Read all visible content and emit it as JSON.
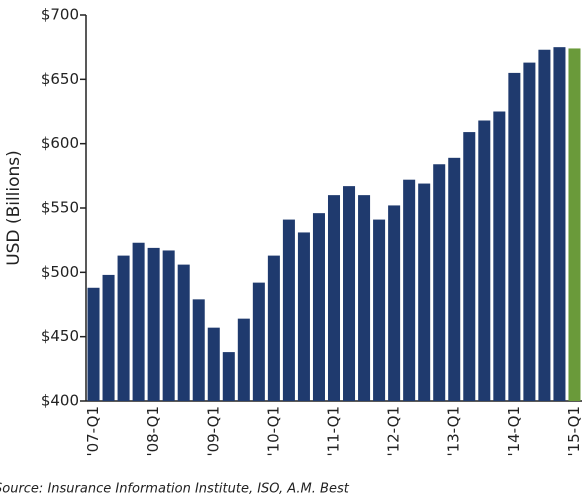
{
  "chart_data": {
    "type": "bar",
    "y_label": "USD (Billions)",
    "source": "Source: Insurance Information Institute, ISO, A.M. Best",
    "categories": [
      "'07-Q1",
      null,
      null,
      null,
      "'08-Q1",
      null,
      null,
      null,
      "'09-Q1",
      null,
      null,
      null,
      "'10-Q1",
      null,
      null,
      null,
      "'11-Q1",
      null,
      null,
      null,
      "'12-Q1",
      null,
      null,
      null,
      "'13-Q1",
      null,
      null,
      null,
      "'14-Q1",
      null,
      null,
      null,
      "'15-Q1"
    ],
    "values": [
      488,
      498,
      513,
      523,
      519,
      517,
      506,
      479,
      457,
      438,
      464,
      492,
      513,
      541,
      531,
      546,
      560,
      567,
      560,
      541,
      552,
      572,
      569,
      584,
      589,
      609,
      618,
      625,
      655,
      663,
      673,
      675,
      674
    ],
    "colors": [
      "#1f3a6e",
      "#1f3a6e",
      "#1f3a6e",
      "#1f3a6e",
      "#1f3a6e",
      "#1f3a6e",
      "#1f3a6e",
      "#1f3a6e",
      "#1f3a6e",
      "#1f3a6e",
      "#1f3a6e",
      "#1f3a6e",
      "#1f3a6e",
      "#1f3a6e",
      "#1f3a6e",
      "#1f3a6e",
      "#1f3a6e",
      "#1f3a6e",
      "#1f3a6e",
      "#1f3a6e",
      "#1f3a6e",
      "#1f3a6e",
      "#1f3a6e",
      "#1f3a6e",
      "#1f3a6e",
      "#1f3a6e",
      "#1f3a6e",
      "#1f3a6e",
      "#1f3a6e",
      "#1f3a6e",
      "#1f3a6e",
      "#1f3a6e",
      "#6a9a3a"
    ],
    "ylim": [
      400,
      700
    ],
    "yticks": [
      {
        "value": 400,
        "label": "$400"
      },
      {
        "value": 450,
        "label": "$450"
      },
      {
        "value": 500,
        "label": "$500"
      },
      {
        "value": 550,
        "label": "$550"
      },
      {
        "value": 600,
        "label": "$600"
      },
      {
        "value": 650,
        "label": "$650"
      },
      {
        "value": 700,
        "label": "$700"
      }
    ]
  }
}
